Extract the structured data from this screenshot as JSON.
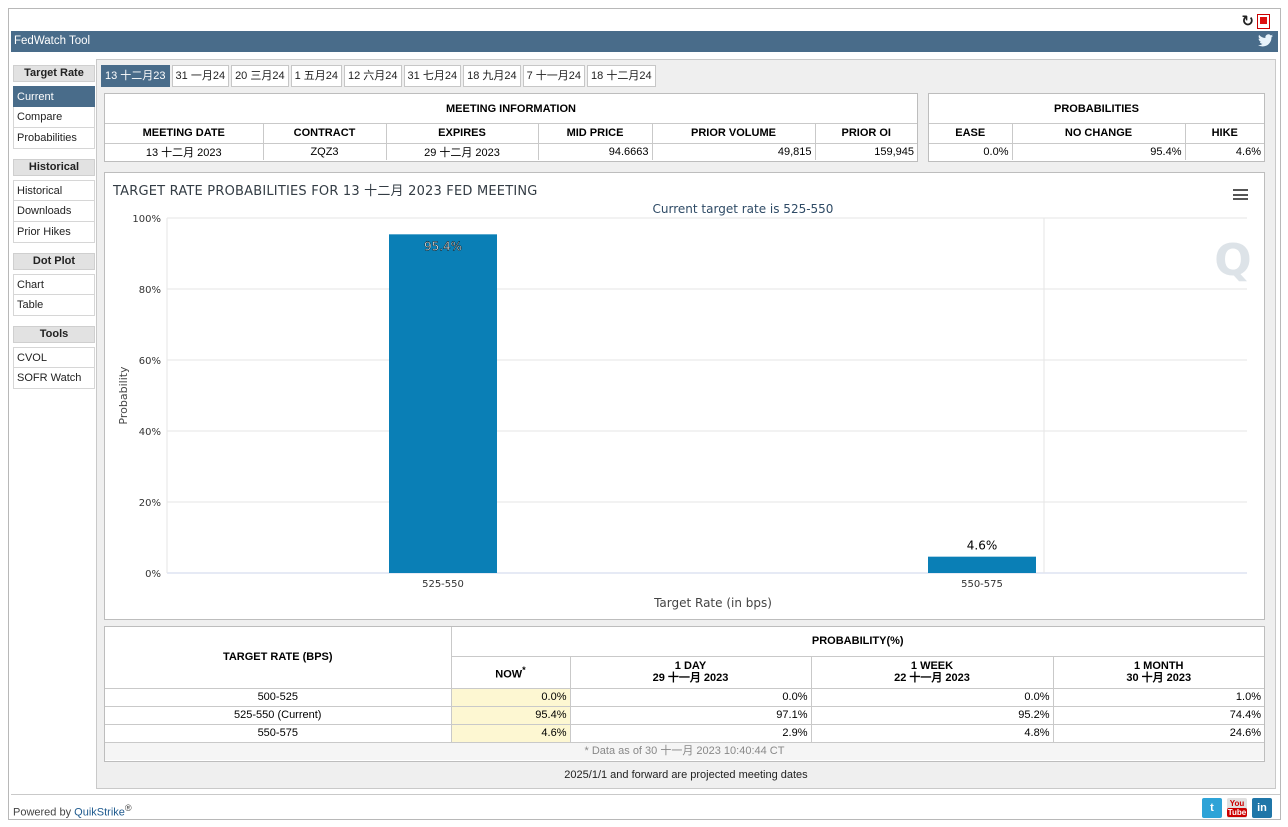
{
  "app": {
    "title": "FedWatch Tool"
  },
  "sidebar": {
    "sections": [
      {
        "heading": "Target Rate",
        "items": [
          "Current",
          "Compare",
          "Probabilities"
        ],
        "active": "Current"
      },
      {
        "heading": "Historical",
        "items": [
          "Historical",
          "Downloads",
          "Prior Hikes"
        ]
      },
      {
        "heading": "Dot Plot",
        "items": [
          "Chart",
          "Table"
        ]
      },
      {
        "heading": "Tools",
        "items": [
          "CVOL",
          "SOFR Watch"
        ]
      }
    ]
  },
  "tabs": [
    "13 十二月23",
    "31 一月24",
    "20 三月24",
    "1 五月24",
    "12 六月24",
    "31 七月24",
    "18 九月24",
    "7 十一月24",
    "18 十二月24"
  ],
  "meeting_info": {
    "title": "MEETING INFORMATION",
    "headers": [
      "MEETING DATE",
      "CONTRACT",
      "EXPIRES",
      "MID PRICE",
      "PRIOR VOLUME",
      "PRIOR OI"
    ],
    "row": [
      "13 十二月 2023",
      "ZQZ3",
      "29 十二月 2023",
      "94.6663",
      "49,815",
      "159,945"
    ]
  },
  "probabilities": {
    "title": "PROBABILITIES",
    "headers": [
      "EASE",
      "NO CHANGE",
      "HIKE"
    ],
    "row": [
      "0.0%",
      "95.4%",
      "4.6%"
    ]
  },
  "chart": {
    "title": "TARGET RATE PROBABILITIES FOR 13 十二月 2023 FED MEETING",
    "subtitle": "Current target rate is 525-550",
    "watermark": "Q"
  },
  "chart_data": {
    "type": "bar",
    "categories": [
      "525-550",
      "550-575"
    ],
    "values": [
      95.4,
      4.6
    ],
    "value_labels": [
      "95.4%",
      "4.6%"
    ],
    "xlabel": "Target Rate (in bps)",
    "ylabel": "Probability",
    "ylim": [
      0,
      100
    ],
    "yticks": [
      "0%",
      "20%",
      "40%",
      "60%",
      "80%",
      "100%"
    ],
    "ytick_values": [
      0,
      20,
      40,
      60,
      80,
      100
    ],
    "grid": true,
    "bar_color": "#0a7fb6"
  },
  "bottom_table": {
    "left_header": "TARGET RATE (BPS)",
    "prob_header": "PROBABILITY(%)",
    "columns": [
      {
        "line1": "NOW",
        "sup": "*",
        "line2": ""
      },
      {
        "line1": "1 DAY",
        "line2": "29 十一月 2023"
      },
      {
        "line1": "1 WEEK",
        "line2": "22 十一月 2023"
      },
      {
        "line1": "1 MONTH",
        "line2": "30 十月 2023"
      }
    ],
    "rows": [
      {
        "rate": "500-525",
        "values": [
          "0.0%",
          "0.0%",
          "0.0%",
          "1.0%"
        ]
      },
      {
        "rate": "525-550 (Current)",
        "values": [
          "95.4%",
          "97.1%",
          "95.2%",
          "74.4%"
        ]
      },
      {
        "rate": "550-575",
        "values": [
          "4.6%",
          "2.9%",
          "4.8%",
          "24.6%"
        ]
      }
    ],
    "footnote": "* Data as of 30 十一月 2023 10:40:44 CT"
  },
  "projected_note": "2025/1/1 and forward are projected meeting dates",
  "footer": {
    "powered_by": "Powered by ",
    "brand": "QuikStrike",
    "reg": "®"
  },
  "social": {
    "twitter": "t",
    "youtube_top": "You",
    "youtube_bottom": "Tube",
    "linkedin": "in"
  }
}
